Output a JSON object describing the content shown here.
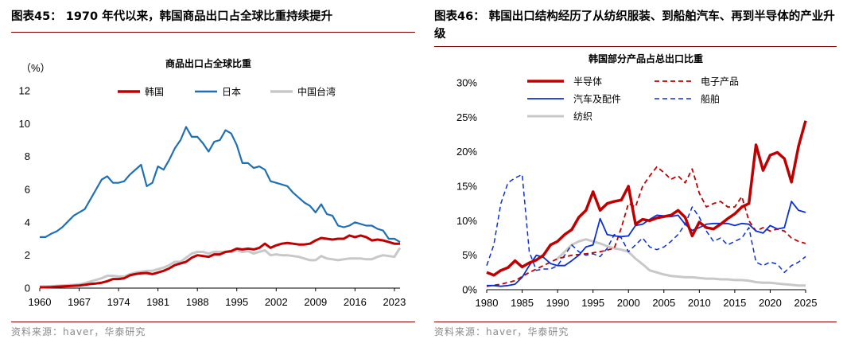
{
  "left": {
    "figure_title": "图表45： 1970 年代以来，韩国商品出口占全球比重持续提升",
    "source": "资料来源：haver，华泰研究"
  },
  "right": {
    "figure_title": "图表46： 韩国出口结构经历了从纺织服装、到船舶汽车、再到半导体的产业升级",
    "source": "资料来源：haver，华泰研究"
  },
  "chart_data": [
    {
      "type": "line",
      "title": "商品出口占全球比重",
      "ylabel": "（%）",
      "xlabel": "",
      "xlim": [
        1960,
        2024
      ],
      "ylim": [
        0,
        12
      ],
      "x_ticks": [
        1960,
        1967,
        1974,
        1981,
        1988,
        1995,
        2002,
        2009,
        2016,
        2023
      ],
      "y_ticks": [
        0,
        2,
        4,
        6,
        8,
        10,
        12
      ],
      "grid": false,
      "legend": "top",
      "x": [
        1960,
        1961,
        1962,
        1963,
        1964,
        1965,
        1966,
        1967,
        1968,
        1969,
        1970,
        1971,
        1972,
        1973,
        1974,
        1975,
        1976,
        1977,
        1978,
        1979,
        1980,
        1981,
        1982,
        1983,
        1984,
        1985,
        1986,
        1987,
        1988,
        1989,
        1990,
        1991,
        1992,
        1993,
        1994,
        1995,
        1996,
        1997,
        1998,
        1999,
        2000,
        2001,
        2002,
        2003,
        2004,
        2005,
        2006,
        2007,
        2008,
        2009,
        2010,
        2011,
        2012,
        2013,
        2014,
        2015,
        2016,
        2017,
        2018,
        2019,
        2020,
        2021,
        2022,
        2023,
        2024
      ],
      "series": [
        {
          "name": "韩国",
          "color": "#c00000",
          "values": [
            0.05,
            0.05,
            0.06,
            0.08,
            0.1,
            0.12,
            0.14,
            0.16,
            0.2,
            0.25,
            0.28,
            0.33,
            0.42,
            0.55,
            0.55,
            0.6,
            0.78,
            0.85,
            0.9,
            0.92,
            0.85,
            0.95,
            1.05,
            1.2,
            1.4,
            1.5,
            1.6,
            1.85,
            2.0,
            1.95,
            1.9,
            2.05,
            2.05,
            2.2,
            2.25,
            2.4,
            2.35,
            2.4,
            2.35,
            2.45,
            2.7,
            2.45,
            2.6,
            2.7,
            2.75,
            2.7,
            2.65,
            2.65,
            2.7,
            2.9,
            3.05,
            3.0,
            2.95,
            3.0,
            3.0,
            3.2,
            3.1,
            3.2,
            3.1,
            2.9,
            2.95,
            2.9,
            2.8,
            2.7,
            2.7
          ]
        },
        {
          "name": "日本",
          "color": "#1f6fb5",
          "values": [
            3.1,
            3.1,
            3.3,
            3.45,
            3.7,
            4.05,
            4.4,
            4.6,
            4.8,
            5.4,
            6.0,
            6.6,
            6.8,
            6.4,
            6.4,
            6.5,
            6.9,
            7.2,
            7.5,
            6.2,
            6.4,
            7.4,
            7.2,
            7.8,
            8.5,
            9.0,
            9.8,
            9.2,
            9.2,
            8.8,
            8.3,
            8.9,
            9.0,
            9.6,
            9.4,
            8.7,
            7.6,
            7.6,
            7.3,
            7.4,
            7.2,
            6.5,
            6.4,
            6.3,
            6.2,
            5.8,
            5.5,
            5.2,
            5.0,
            4.6,
            5.1,
            4.5,
            4.4,
            3.8,
            3.7,
            3.8,
            4.0,
            3.9,
            3.8,
            3.8,
            3.6,
            3.5,
            3.0,
            3.0,
            2.8
          ]
        },
        {
          "name": "中国台湾",
          "color": "#c8c8c8",
          "values": [
            0.1,
            0.1,
            0.12,
            0.14,
            0.16,
            0.18,
            0.2,
            0.23,
            0.3,
            0.4,
            0.5,
            0.6,
            0.75,
            0.75,
            0.7,
            0.7,
            0.85,
            0.95,
            1.0,
            1.05,
            1.05,
            1.15,
            1.25,
            1.4,
            1.6,
            1.6,
            1.85,
            2.1,
            2.2,
            2.2,
            2.1,
            2.2,
            2.2,
            2.2,
            2.2,
            2.3,
            2.2,
            2.25,
            2.1,
            2.2,
            2.3,
            2.0,
            2.05,
            2.0,
            2.0,
            1.95,
            1.9,
            1.8,
            1.7,
            1.7,
            1.95,
            1.8,
            1.75,
            1.7,
            1.75,
            1.8,
            1.8,
            1.8,
            1.75,
            1.75,
            1.9,
            2.0,
            1.95,
            1.9,
            2.45
          ]
        }
      ]
    },
    {
      "type": "line",
      "title": "韩国部分产品占总出口比重",
      "xlabel": "",
      "ylabel": "",
      "xlim": [
        1980,
        2025
      ],
      "ylim": [
        0,
        30
      ],
      "x_ticks": [
        1980,
        1985,
        1990,
        1995,
        2000,
        2005,
        2010,
        2015,
        2020,
        2025
      ],
      "y_ticks": [
        0,
        5,
        10,
        15,
        20,
        25,
        30
      ],
      "y_tick_suffix": "%",
      "grid": false,
      "legend": "top-left",
      "series": [
        {
          "name": "半导体",
          "color": "#c00000",
          "dash": "solid",
          "width": 3.5,
          "x": [
            1980,
            1981,
            1982,
            1983,
            1984,
            1985,
            1986,
            1987,
            1988,
            1989,
            1990,
            1991,
            1992,
            1993,
            1994,
            1995,
            1996,
            1997,
            1998,
            1999,
            2000,
            2001,
            2002,
            2003,
            2004,
            2005,
            2006,
            2007,
            2008,
            2009,
            2010,
            2011,
            2012,
            2013,
            2014,
            2015,
            2016,
            2017,
            2018,
            2019,
            2020,
            2021,
            2022,
            2023,
            2024,
            2025
          ],
          "values": [
            2.5,
            2.1,
            2.8,
            3.2,
            4.2,
            3.3,
            3.9,
            4.3,
            5.0,
            6.5,
            7.0,
            8.0,
            8.7,
            10.5,
            11.5,
            14.2,
            11.5,
            12.5,
            12.8,
            13.0,
            15.0,
            9.5,
            10.2,
            10.0,
            10.4,
            10.6,
            10.8,
            11.5,
            10.5,
            7.8,
            9.8,
            9.0,
            8.8,
            9.5,
            10.3,
            11.0,
            12.0,
            12.5,
            21.0,
            17.3,
            19.5,
            19.9,
            19.0,
            15.6,
            20.8,
            24.5
          ]
        },
        {
          "name": "电子产品",
          "color": "#c00000",
          "dash": "dashed",
          "width": 1.8,
          "x": [
            1980,
            1982,
            1984,
            1986,
            1988,
            1990,
            1992,
            1994,
            1996,
            1998,
            1999,
            2000,
            2001,
            2002,
            2003,
            2004,
            2005,
            2006,
            2007,
            2008,
            2009,
            2010,
            2011,
            2012,
            2013,
            2014,
            2015,
            2016,
            2017,
            2018,
            2019,
            2020,
            2021,
            2022,
            2023,
            2024,
            2025
          ],
          "values": [
            0.5,
            0.8,
            1.3,
            2.5,
            3.5,
            4.5,
            5.0,
            5.2,
            5.5,
            6.0,
            9.0,
            12.5,
            12.0,
            15.0,
            16.5,
            17.8,
            17.0,
            16.0,
            16.5,
            15.5,
            17.5,
            14.0,
            12.0,
            12.5,
            12.8,
            12.0,
            12.0,
            13.5,
            10.0,
            8.5,
            9.0,
            8.5,
            8.8,
            8.5,
            7.5,
            7.0,
            6.7
          ]
        },
        {
          "name": "汽车及配件",
          "color": "#0b2fd6",
          "dash": "solid",
          "width": 1.8,
          "x": [
            1980,
            1981,
            1982,
            1983,
            1984,
            1985,
            1986,
            1987,
            1988,
            1989,
            1990,
            1991,
            1992,
            1993,
            1994,
            1995,
            1996,
            1997,
            1998,
            1999,
            2000,
            2001,
            2002,
            2003,
            2004,
            2005,
            2006,
            2007,
            2008,
            2009,
            2010,
            2011,
            2012,
            2013,
            2014,
            2015,
            2016,
            2017,
            2018,
            2019,
            2020,
            2021,
            2022,
            2023,
            2024,
            2025
          ],
          "values": [
            0.6,
            0.6,
            0.5,
            0.6,
            0.8,
            1.8,
            3.5,
            5.0,
            4.7,
            3.8,
            3.5,
            3.5,
            4.2,
            5.0,
            6.2,
            6.5,
            10.3,
            8.0,
            7.8,
            7.7,
            7.8,
            9.3,
            9.5,
            10.2,
            10.8,
            10.7,
            10.6,
            10.8,
            9.5,
            8.6,
            9.0,
            9.5,
            9.6,
            9.6,
            9.6,
            9.3,
            9.6,
            9.5,
            8.5,
            8.2,
            9.3,
            8.8,
            9.0,
            12.8,
            11.5,
            11.2
          ]
        },
        {
          "name": "船舶",
          "color": "#0b2fd6",
          "dash": "dashed",
          "width": 1.5,
          "x": [
            1980,
            1981,
            1982,
            1983,
            1984,
            1985,
            1986,
            1987,
            1988,
            1989,
            1990,
            1991,
            1992,
            1993,
            1994,
            1995,
            1996,
            1997,
            1998,
            1999,
            2000,
            2001,
            2002,
            2003,
            2004,
            2005,
            2006,
            2007,
            2008,
            2009,
            2010,
            2011,
            2012,
            2013,
            2014,
            2015,
            2016,
            2017,
            2018,
            2019,
            2020,
            2021,
            2022,
            2023,
            2024,
            2025
          ],
          "values": [
            3.5,
            6.5,
            12.5,
            15.5,
            16.2,
            16.7,
            5.5,
            2.8,
            3.0,
            3.0,
            3.5,
            5.0,
            6.5,
            5.5,
            5.0,
            5.2,
            4.8,
            6.0,
            8.0,
            7.5,
            5.5,
            6.5,
            7.5,
            6.2,
            5.8,
            6.2,
            7.0,
            8.0,
            9.5,
            12.0,
            10.5,
            8.5,
            7.0,
            7.5,
            6.5,
            7.0,
            7.5,
            9.0,
            4.0,
            3.5,
            4.0,
            3.7,
            2.5,
            3.5,
            4.0,
            4.8
          ]
        },
        {
          "name": "纺织",
          "color": "#c8c8c8",
          "dash": "solid",
          "width": 3,
          "x": [
            1990,
            1991,
            1992,
            1993,
            1994,
            1995,
            1996,
            1997,
            1998,
            1999,
            2000,
            2001,
            2002,
            2003,
            2004,
            2005,
            2006,
            2007,
            2008,
            2009,
            2010,
            2011,
            2012,
            2013,
            2014,
            2015,
            2016,
            2017,
            2018,
            2019,
            2020,
            2021,
            2022,
            2023,
            2024,
            2025
          ],
          "values": [
            4.5,
            5.5,
            6.5,
            7.0,
            7.3,
            7.0,
            6.7,
            6.3,
            6.0,
            5.8,
            5.5,
            4.5,
            3.7,
            2.8,
            2.5,
            2.2,
            2.0,
            1.9,
            1.8,
            1.8,
            1.7,
            1.6,
            1.6,
            1.5,
            1.5,
            1.4,
            1.4,
            1.3,
            1.1,
            1.0,
            1.0,
            0.9,
            0.8,
            0.7,
            0.6,
            0.6
          ]
        }
      ]
    }
  ]
}
